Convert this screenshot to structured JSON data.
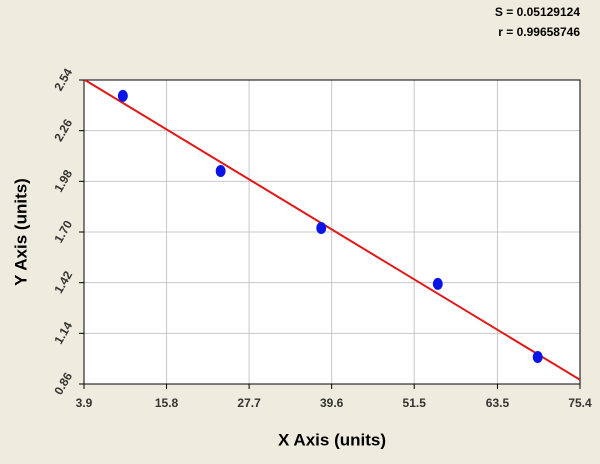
{
  "chart_data": {
    "type": "scatter",
    "annotations": [
      "S = 0.05129124",
      "r = 0.99658746"
    ],
    "x_label": "X Axis (units)",
    "y_label": "Y Axis (units)",
    "x": [
      9.5,
      23.6,
      38.1,
      54.9,
      69.3
    ],
    "series": [
      {
        "color": "#0a14e6",
        "values": [
          2.452,
          2.037,
          1.722,
          1.413,
          1.009
        ]
      }
    ],
    "fit_color": "#e01818",
    "xlim": [
      3.9,
      75.4
    ],
    "xticks": [
      3.9,
      15.8,
      27.7,
      39.6,
      51.5,
      63.5,
      75.4
    ],
    "ylim": [
      0.86,
      2.54
    ],
    "yticks": [
      0.86,
      1.14,
      1.42,
      {
        "value": 1.7,
        "label": "1.70"
      },
      1.98,
      2.26,
      2.54
    ],
    "grid": true
  }
}
